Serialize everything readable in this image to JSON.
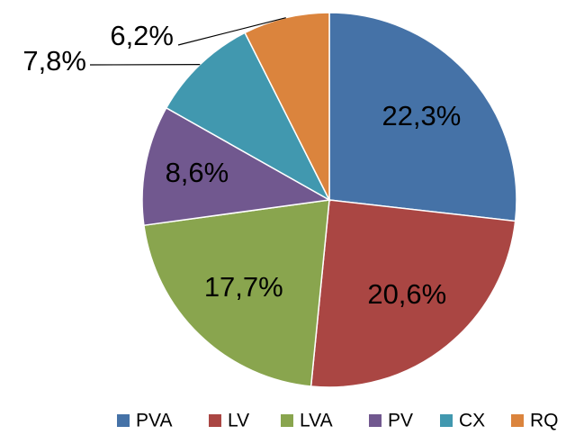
{
  "chart_data": {
    "type": "pie",
    "categories": [
      "PVA",
      "LV",
      "LVA",
      "PV",
      "CX",
      "RQ"
    ],
    "values": [
      22.3,
      20.6,
      17.7,
      8.6,
      7.8,
      6.2
    ],
    "value_labels": [
      "22,3%",
      "20,6%",
      "17,7%",
      "8,6%",
      "7,8%",
      "6,2%"
    ],
    "colors": [
      "#4572a7",
      "#aa4643",
      "#89a54e",
      "#71588f",
      "#4198af",
      "#db843d"
    ],
    "legend": "bottom"
  }
}
